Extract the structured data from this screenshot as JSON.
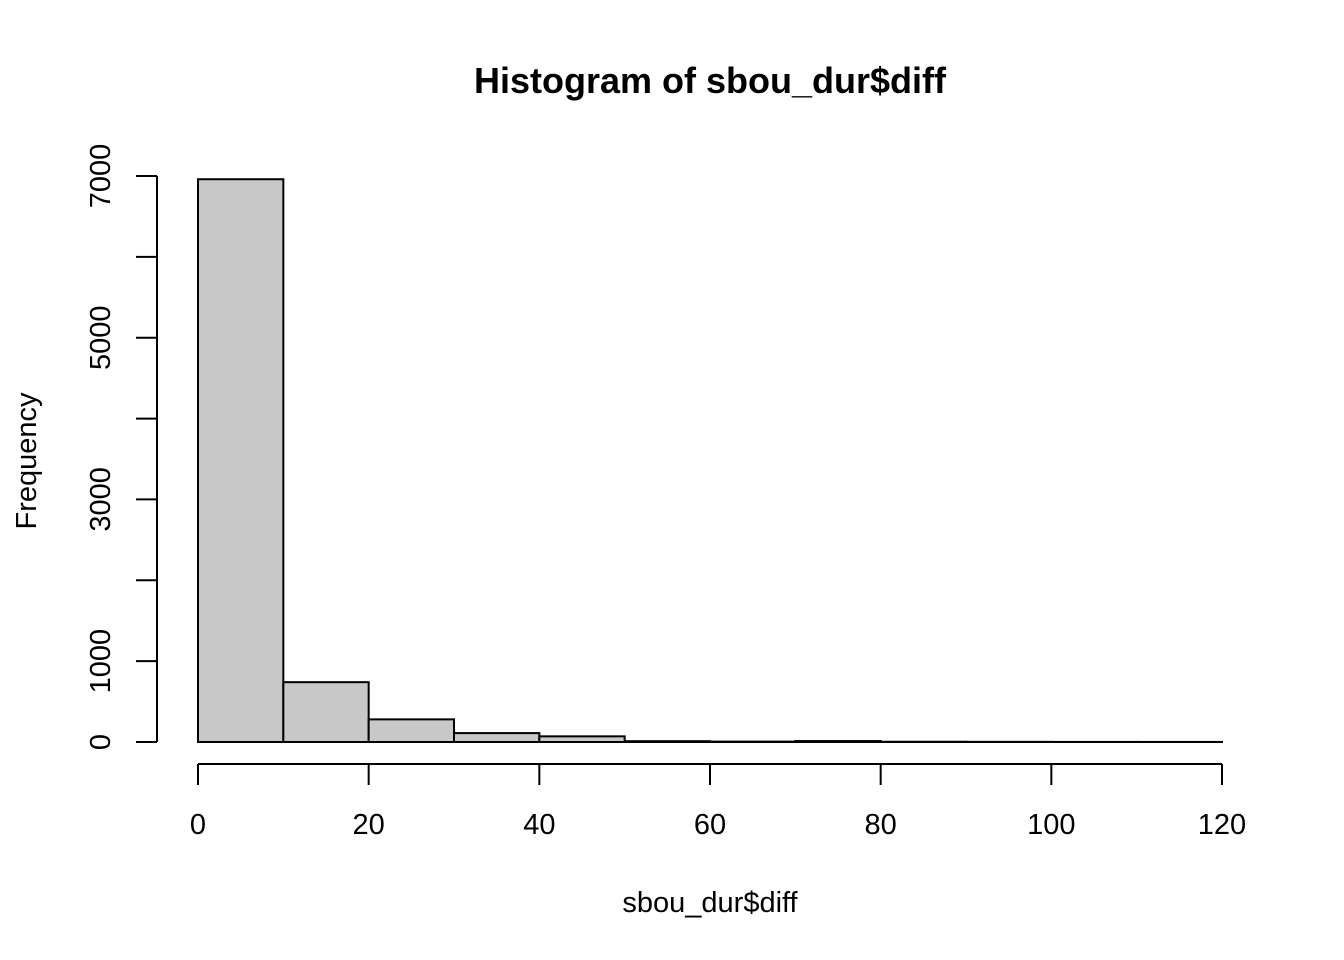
{
  "chart_data": {
    "type": "bar",
    "title": "Histogram of sbou_dur$diff",
    "xlabel": "sbou_dur$diff",
    "ylabel": "Frequency",
    "bins": [
      {
        "from": 0,
        "to": 10,
        "count": 6960
      },
      {
        "from": 10,
        "to": 20,
        "count": 740
      },
      {
        "from": 20,
        "to": 30,
        "count": 280
      },
      {
        "from": 30,
        "to": 40,
        "count": 110
      },
      {
        "from": 40,
        "to": 50,
        "count": 70
      },
      {
        "from": 50,
        "to": 60,
        "count": 10
      },
      {
        "from": 60,
        "to": 70,
        "count": 5
      },
      {
        "from": 70,
        "to": 80,
        "count": 12
      },
      {
        "from": 80,
        "to": 90,
        "count": 3
      },
      {
        "from": 90,
        "to": 100,
        "count": 2
      },
      {
        "from": 100,
        "to": 110,
        "count": 1
      },
      {
        "from": 110,
        "to": 120,
        "count": 1
      }
    ],
    "xlim": [
      0,
      120
    ],
    "ylim": [
      0,
      7000
    ],
    "x_ticks": [
      0,
      20,
      40,
      60,
      80,
      100,
      120
    ],
    "y_ticks": [
      0,
      1000,
      2000,
      3000,
      4000,
      5000,
      6000,
      7000
    ],
    "y_tick_labels": [
      "0",
      "1000",
      "",
      "3000",
      "",
      "5000",
      "",
      "7000"
    ],
    "grid": false,
    "colors": {
      "bar_fill": "#c8c8c8",
      "bar_stroke": "#000000"
    }
  }
}
